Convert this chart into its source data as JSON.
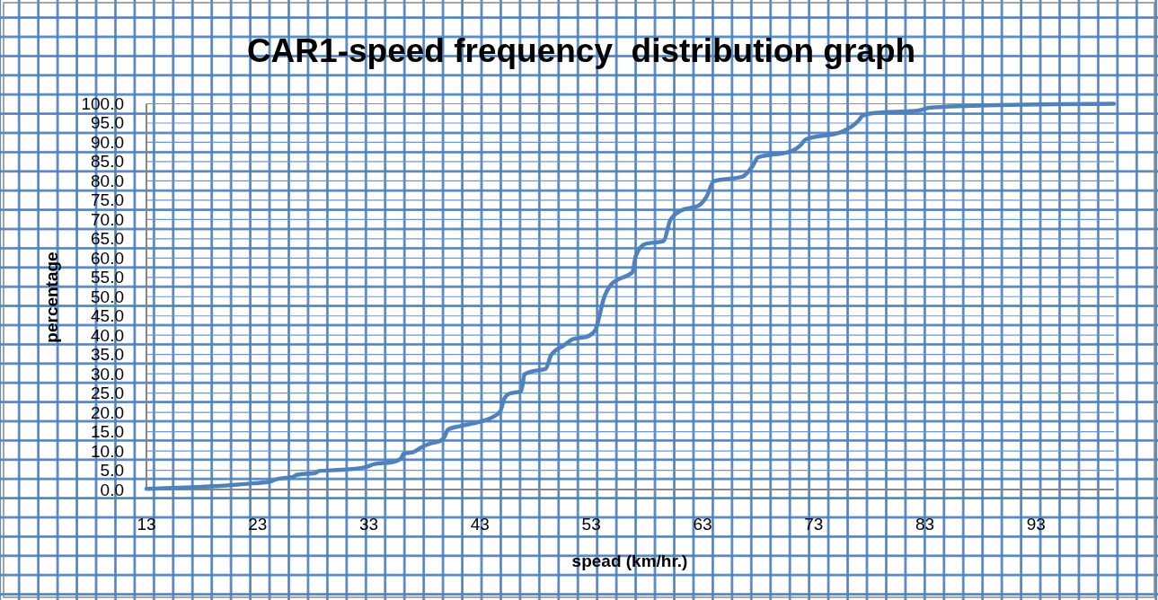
{
  "chart_data": {
    "type": "line",
    "title": "CAR1-speed frequency  distribution graph",
    "xlabel": "spead (km/hr.)",
    "ylabel": "percentage",
    "x": [
      13,
      18,
      22.6,
      24.2,
      24.6,
      26.2,
      26.5,
      28.2,
      28.5,
      30.5,
      32.7,
      33.5,
      35.1,
      35.9,
      36.1,
      37.0,
      37.7,
      38.6,
      39.4,
      39.8,
      40.1,
      41.3,
      42.9,
      44.0,
      44.8,
      45.2,
      45.6,
      46.7,
      47.0,
      47.8,
      48.9,
      49.4,
      50.5,
      51.4,
      52.6,
      53.4,
      53.7,
      54.1,
      54.8,
      55.3,
      56.7,
      57.0,
      57.8,
      59.5,
      60.1,
      61.0,
      62.7,
      63.4,
      64.0,
      66.6,
      67.5,
      68.0,
      71.0,
      71.8,
      72.3,
      75.5,
      76.3,
      77.0,
      77.4,
      78.5,
      82.3,
      83.5,
      88.7,
      100
    ],
    "series": [
      {
        "color": "#4f81bd",
        "values": [
          0.2,
          0.7,
          1.6,
          2.1,
          2.6,
          3.3,
          3.8,
          4.3,
          4.8,
          5.1,
          5.8,
          6.6,
          7.1,
          8.1,
          9.3,
          9.7,
          10.9,
          12.0,
          12.6,
          13.6,
          15.5,
          16.5,
          17.5,
          18.6,
          20.2,
          23.7,
          24.8,
          25.5,
          29.9,
          30.7,
          31.3,
          34.9,
          37.3,
          39.0,
          39.6,
          41.5,
          44.6,
          49.3,
          53.2,
          54.3,
          56.3,
          60.5,
          63.6,
          64.4,
          69.8,
          72.2,
          73.7,
          76.1,
          79.9,
          81.1,
          83.8,
          86.1,
          87.7,
          89.2,
          90.8,
          92.7,
          93.9,
          95.5,
          96.9,
          97.6,
          98.2,
          99.0,
          99.6,
          100
        ]
      }
    ],
    "xlim": [
      13,
      100
    ],
    "ylim": [
      0,
      100
    ],
    "xticks": [
      13,
      23,
      33,
      43,
      53,
      63,
      73,
      83,
      93
    ],
    "yticks": [
      {
        "value": 0,
        "label": "0.0"
      },
      {
        "value": 5,
        "label": "5.0"
      },
      {
        "value": 10,
        "label": "10.0"
      },
      {
        "value": 15,
        "label": "15.0"
      },
      {
        "value": 20,
        "label": "20.0"
      },
      {
        "value": 25,
        "label": "25.0"
      },
      {
        "value": 30,
        "label": "30.0"
      },
      {
        "value": 35,
        "label": "35.0"
      },
      {
        "value": 40,
        "label": "40.0"
      },
      {
        "value": 45,
        "label": "45.0"
      },
      {
        "value": 50,
        "label": "50.0"
      },
      {
        "value": 55,
        "label": "55.0"
      },
      {
        "value": 60,
        "label": "60.0"
      },
      {
        "value": 65,
        "label": "65.0"
      },
      {
        "value": 70,
        "label": "70.0"
      },
      {
        "value": 75,
        "label": "75.0"
      },
      {
        "value": 80,
        "label": "80.0"
      },
      {
        "value": 85,
        "label": "85.0"
      },
      {
        "value": 90,
        "label": "90.0"
      },
      {
        "value": 95,
        "label": "95.0"
      },
      {
        "value": 100,
        "label": "100.0"
      }
    ],
    "grid": "y"
  }
}
